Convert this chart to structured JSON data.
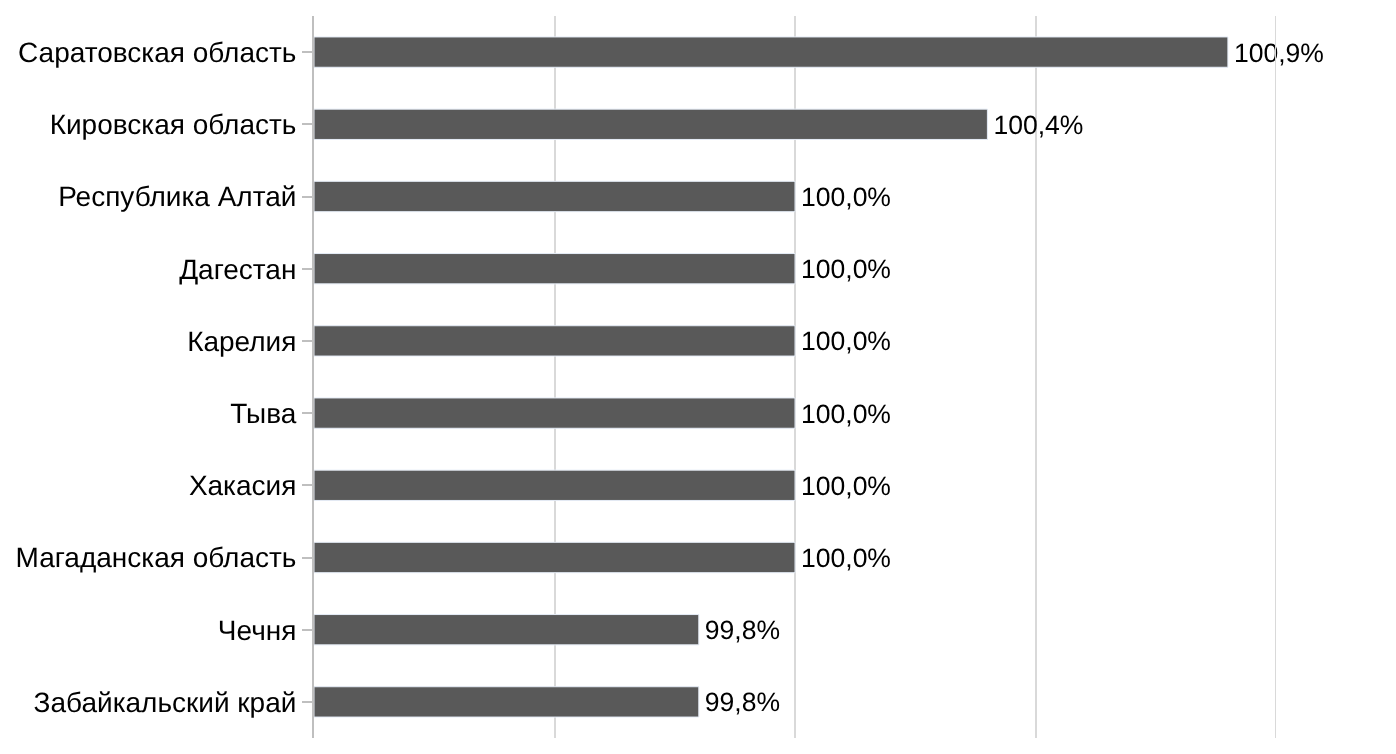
{
  "chart_data": {
    "type": "bar",
    "orientation": "horizontal",
    "categories": [
      "Саратовская область",
      "Кировская область",
      "Республика Алтай",
      "Дагестан",
      "Карелия",
      "Тыва",
      "Хакасия",
      "Магаданская область",
      "Чечня",
      "Забайкальский край"
    ],
    "values": [
      100.9,
      100.4,
      100.0,
      100.0,
      100.0,
      100.0,
      100.0,
      100.0,
      99.8,
      99.8
    ],
    "value_labels": [
      "100,9%",
      "100,4%",
      "100,0%",
      "100,0%",
      "100,0%",
      "100,0%",
      "100,0%",
      "100,0%",
      "99,8%",
      "99,8%"
    ],
    "color": "#595959",
    "xlim": [
      99,
      101
    ],
    "grid": "x",
    "legend": false,
    "tick_labels": "y"
  }
}
